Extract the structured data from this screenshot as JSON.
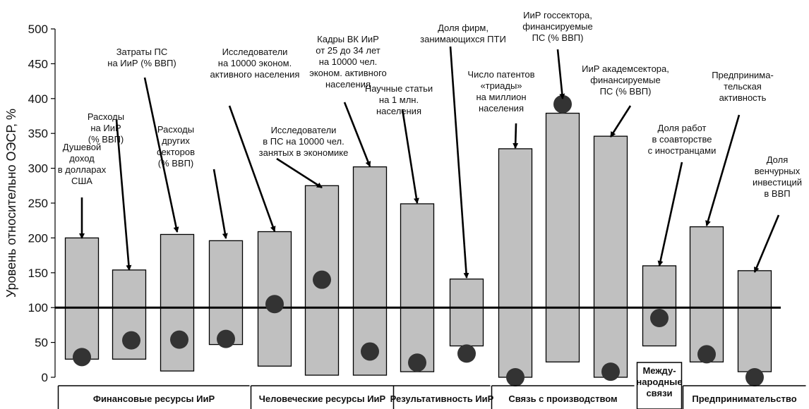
{
  "chart_data": {
    "type": "bar",
    "ylabel": "Уровень относительно ОЭСР, %",
    "ylim": [
      0,
      500
    ],
    "yticks": [
      0,
      50,
      100,
      150,
      200,
      250,
      300,
      350,
      400,
      450,
      500
    ],
    "reference_line": 100,
    "grid": false,
    "categories": [
      "Душевой доход в долларах США",
      "Расходы на ИиР (% ВВП)",
      "Затраты ПС на ИиР (% ВВП)",
      "Расходы других секторов (% ВВП)",
      "Исследователи на 10000 эконом. активного населения",
      "Исследователи в ПС на 10000 чел. занятых в экономике",
      "Кадры ВК ИиР от 25 до 34 лет на 10000 чел. эконом. активного населения",
      "Научные статьи на 1 млн. населения",
      "Доля фирм, занимающихся ПТИ",
      "Число патентов «триады» на миллион населения",
      "ИиР госсектора, финансируемые ПС (% ВВП)",
      "ИиР академсектора, финансируемые ПС (% ВВП)",
      "Доля работ в соавторстве с иностранцами",
      "Предпринима-тельская активность",
      "Доля венчурных инвестиций в ВВП"
    ],
    "series": [
      {
        "values_low": [
          26,
          26,
          9,
          47,
          16,
          3,
          3,
          8,
          45,
          0,
          22,
          0,
          45,
          22,
          8
        ]
      },
      {
        "values_high": [
          200,
          154,
          205,
          196,
          209,
          275,
          302,
          249,
          141,
          328,
          379,
          346,
          160,
          216,
          153
        ]
      },
      {
        "values_point": [
          29,
          53,
          54,
          55,
          105,
          140,
          37,
          21,
          34,
          0,
          392,
          8,
          85,
          33,
          0
        ]
      }
    ],
    "annotations": [
      [
        "Душевой",
        "доход",
        "в долларах",
        "США"
      ],
      [
        "Расходы",
        "на ИиР",
        "(% ВВП)"
      ],
      [
        "Затраты ПС",
        "на ИиР (% ВВП)"
      ],
      [
        "Расходы",
        "других",
        "секторов",
        "(% ВВП)"
      ],
      [
        "Исследователи",
        "на 10000 эконом.",
        "активного населения"
      ],
      [
        "Исследователи",
        "в ПС на 10000 чел.",
        "занятых в экономике"
      ],
      [
        "Кадры ВК ИиР",
        "от 25 до 34 лет",
        "на 10000 чел.",
        "эконом. активного",
        "населения"
      ],
      [
        "Научные статьи",
        "на 1 млн.",
        "населения"
      ],
      [
        "Доля фирм,",
        "занимающихся ПТИ"
      ],
      [
        "Число патентов",
        "«триады»",
        "на миллион",
        "населения"
      ],
      [
        "ИиР госсектора,",
        "финансируемые",
        "ПС (% ВВП)"
      ],
      [
        "ИиР академсектора,",
        "финансируемые",
        "ПС (% ВВП)"
      ],
      [
        "Доля работ",
        "в соавторстве",
        "с иностранцами"
      ],
      [
        "Предпринима-",
        "тельская",
        "активность"
      ],
      [
        "Доля",
        "венчурных",
        "инвестиций",
        "в ВВП"
      ]
    ],
    "groups": [
      {
        "label": [
          "Финансовые ресурсы ИиР"
        ],
        "from": 1,
        "to": 4
      },
      {
        "label": [
          "Человеческие ресурсы ИиР"
        ],
        "from": 5,
        "to": 7
      },
      {
        "label": [
          "Результативность ИиР"
        ],
        "from": 8,
        "to": 9
      },
      {
        "label": [
          "Связь с производством"
        ],
        "from": 10,
        "to": 12
      },
      {
        "label": [
          "Между-",
          "народные",
          "связи"
        ],
        "from": 13,
        "to": 13
      },
      {
        "label": [
          "Предпринимательство"
        ],
        "from": 14,
        "to": 15
      }
    ],
    "colors": {
      "bar_fill": "#c0c0c0",
      "bar_stroke": "#000000",
      "point": "#333333",
      "reference_line": "#000000"
    }
  }
}
